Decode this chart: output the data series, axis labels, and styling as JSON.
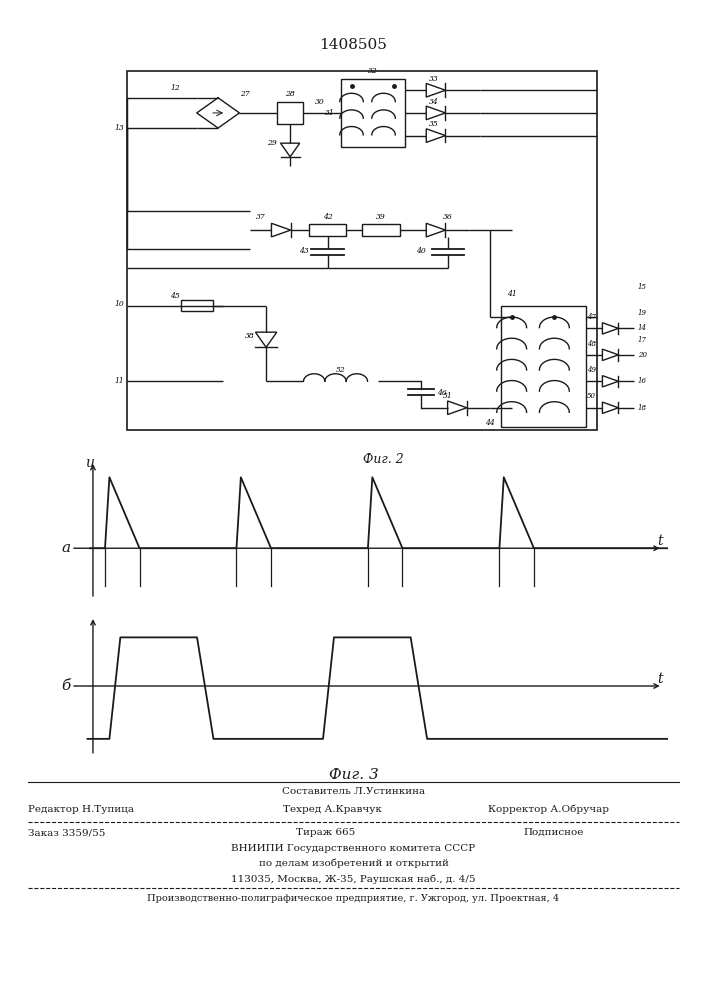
{
  "title": "1408505",
  "fig2_label": "Фиг. 2",
  "fig3_label": "Фиг. 3",
  "waveform_a_label": "а",
  "waveform_b_label": "б",
  "u_label": "u",
  "t_label": "t",
  "footer_sostavitel": "Составитель Л.Устинкина",
  "footer_editor": "Редактор Н.Тупица",
  "footer_techred": "Техред А.Кравчук",
  "footer_corrector": "Корректор А.Обручар",
  "footer_order": "Заказ 3359/55",
  "footer_tirazh": "Тираж 665",
  "footer_podpisnoe": "Подписное",
  "footer_vniipи": "ВНИИПИ Государственного комитета СССР",
  "footer_po_delam": "по делам изобретений и открытий",
  "footer_address": "113035, Москва, Ж-35, Раушская наб., д. 4/5",
  "footer_production": "Производственно-полиграфическое предприятие, г. Ужгород, ул. Проектная, 4",
  "bg_color": "#ffffff",
  "line_color": "#1a1a1a"
}
